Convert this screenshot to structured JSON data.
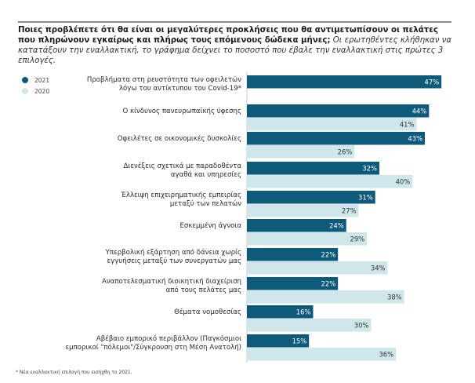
{
  "title": {
    "bold": "Ποιες προβλέπετε ότι θα είναι οι μεγαλύτερες προκλήσεις που θα αντιμετωπίσουν οι πελάτες που πληρώνουν εγκαίρως και πλήρως τους επόμενους δώδεκα μήνες;",
    "italic": " Οι ερωτηθέντες κλήθηκαν να κατατάξουν την εναλλακτική, το γράφημα δείχνει το ποσοστό που έβαλε την εναλλακτική στις πρώτες 3 επιλογές."
  },
  "footnote": "* Νέα εναλλακτική επιλογή που εισήχθη το 2021.",
  "colors": {
    "2021": "#0e5a7a",
    "2020": "#cfe6ea",
    "label_2021": "#ffffff",
    "label_2020": "#333333"
  },
  "chart_data": {
    "type": "bar",
    "orientation": "horizontal",
    "title": "Ποιες προβλέπετε ότι θα είναι οι μεγαλύτερες προκλήσεις που θα αντιμετωπίσουν οι πελάτες που πληρώνουν εγκαίρως και πλήρως τους επόμενους δώδεκα μήνες;",
    "xlabel": "",
    "ylabel": "",
    "xlim": [
      0,
      50
    ],
    "grid": false,
    "legend": {
      "position": "top-left",
      "entries": [
        "2021",
        "2020"
      ]
    },
    "unit": "%",
    "categories": [
      [
        "Προβλήματα στη ρευστότητα των οφειλετών",
        "λόγω του αντίκτυπου του Covid-19*"
      ],
      [
        "Ο κίνδυνος πανευρωπαϊκής ύφεσης"
      ],
      [
        "Οφειλέτες σε οικονομικές δυσκολίες"
      ],
      [
        "Διενέξεις σχετικά με παραδοθέντα",
        "αγαθά και υπηρεσίες"
      ],
      [
        "Έλλειψη επιχειρηματικής εμπειρίας",
        "μεταξύ των πελατών"
      ],
      [
        "Εσκεμμένη άγνοια"
      ],
      [
        "Υπερβολική εξάρτηση από δάνεια χωρίς",
        "εγγυήσεις μεταξύ των συνεργατών μας"
      ],
      [
        "Αναποτελεσματική διοικητική διαχείριση",
        "από τους πελάτες μας"
      ],
      [
        "Θέματα νομοθεσίας"
      ],
      [
        "Αβέβαιο εμπορικό περιβάλλον (Παγκόσμιοι",
        "εμπορικοί \"πόλεμοι\"/Σύγκρουση στη Μέση Ανατολή)"
      ]
    ],
    "series": [
      {
        "name": "2021",
        "values": [
          47,
          44,
          43,
          32,
          31,
          24,
          22,
          22,
          16,
          15
        ]
      },
      {
        "name": "2020",
        "values": [
          null,
          41,
          26,
          40,
          27,
          29,
          34,
          38,
          30,
          36
        ]
      }
    ]
  }
}
